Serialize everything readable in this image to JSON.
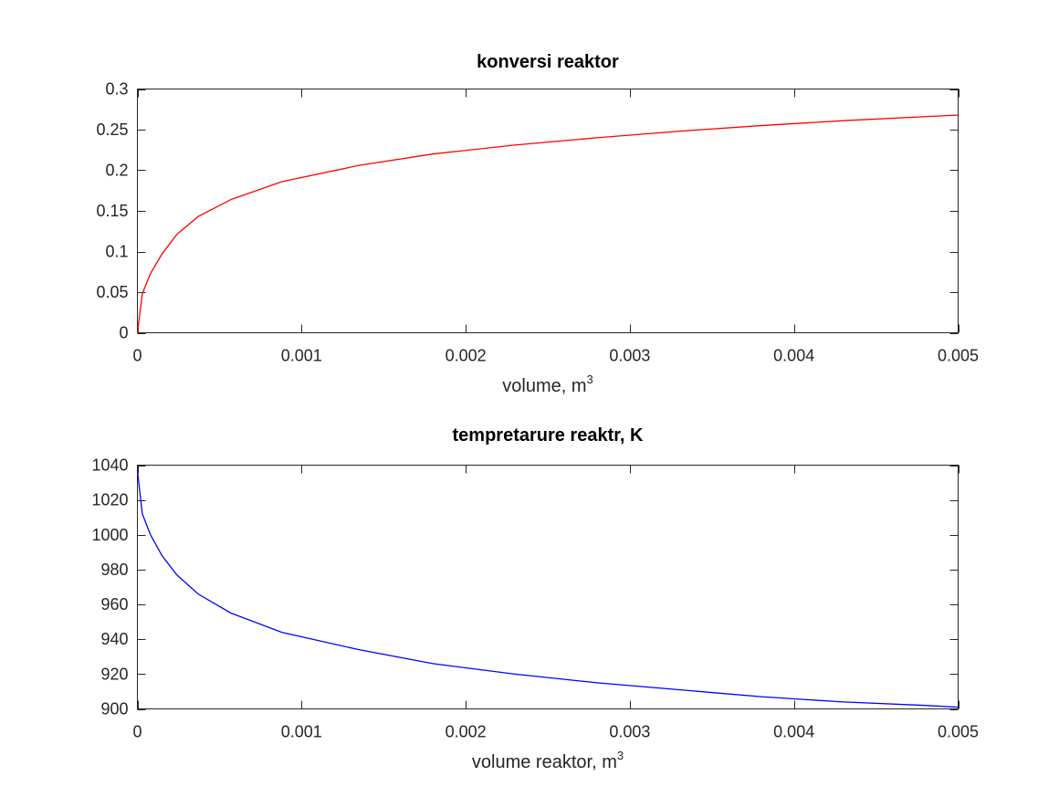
{
  "chart_data": [
    {
      "type": "line",
      "title": "konversi reaktor",
      "xlabel": "volume, m",
      "xlabel_superscript": "3",
      "ylabel": "",
      "xlim": [
        0,
        0.005
      ],
      "ylim": [
        0,
        0.3
      ],
      "x_ticks": [
        "0",
        "0.001",
        "0.002",
        "0.003",
        "0.004",
        "0.005"
      ],
      "y_ticks": [
        "0",
        "0.05",
        "0.1",
        "0.15",
        "0.2",
        "0.25",
        "0.3"
      ],
      "x_tick_values": [
        0,
        0.001,
        0.002,
        0.003,
        0.004,
        0.005
      ],
      "y_tick_values": [
        0,
        0.05,
        0.1,
        0.15,
        0.2,
        0.25,
        0.3
      ],
      "grid": false,
      "series": [
        {
          "color": "#ff0000",
          "x": [
            0,
            3e-05,
            8e-05,
            0.00015,
            0.00024,
            0.00037,
            0.00057,
            0.00088,
            0.00135,
            0.0018,
            0.0023,
            0.0028,
            0.0033,
            0.0038,
            0.0043,
            0.0048,
            0.005
          ],
          "y": [
            0,
            0.048,
            0.073,
            0.097,
            0.121,
            0.143,
            0.164,
            0.186,
            0.206,
            0.22,
            0.231,
            0.24,
            0.248,
            0.255,
            0.261,
            0.266,
            0.268
          ]
        }
      ]
    },
    {
      "type": "line",
      "title": "tempretarure reaktr, K",
      "xlabel": "volume reaktor, m",
      "xlabel_superscript": "3",
      "ylabel": "",
      "xlim": [
        0,
        0.005
      ],
      "ylim": [
        900,
        1040
      ],
      "x_ticks": [
        "0",
        "0.001",
        "0.002",
        "0.003",
        "0.004",
        "0.005"
      ],
      "y_ticks": [
        "900",
        "920",
        "940",
        "960",
        "980",
        "1000",
        "1020",
        "1040"
      ],
      "x_tick_values": [
        0,
        0.001,
        0.002,
        0.003,
        0.004,
        0.005
      ],
      "y_tick_values": [
        900,
        920,
        940,
        960,
        980,
        1000,
        1020,
        1040
      ],
      "grid": false,
      "series": [
        {
          "color": "#0000ff",
          "x": [
            0,
            3e-05,
            8e-05,
            0.00015,
            0.00024,
            0.00037,
            0.00057,
            0.00088,
            0.00135,
            0.0018,
            0.0023,
            0.0028,
            0.0033,
            0.0038,
            0.0043,
            0.0048,
            0.005
          ],
          "y": [
            1037,
            1012,
            1000,
            988,
            977,
            966,
            955,
            944,
            934,
            926,
            920,
            915,
            911,
            907,
            904,
            902,
            901
          ]
        }
      ]
    }
  ]
}
